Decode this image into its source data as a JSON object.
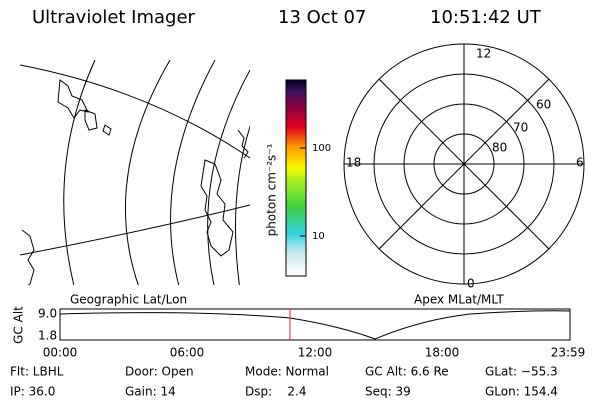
{
  "header": {
    "instrument": "Ultraviolet Imager",
    "date": "13 Oct 07",
    "time": "10:51:42 UT"
  },
  "colorbar": {
    "label": "photon cm⁻²s⁻¹",
    "ticks": [
      "100",
      "10"
    ]
  },
  "polar": {
    "mlt_labels": [
      "12",
      "18",
      "6",
      "0"
    ],
    "mlat_labels": [
      "60",
      "70",
      "80"
    ]
  },
  "panels": {
    "left": "Geographic Lat/Lon",
    "right": "Apex MLat/MLT"
  },
  "timeline": {
    "ylabel": "GC Alt",
    "yticks": [
      "9.0",
      "1.8"
    ],
    "xticks": [
      "00:00",
      "06:00",
      "12:00",
      "18:00",
      "23:59"
    ]
  },
  "info": {
    "rows": [
      [
        "Flt: LBHL",
        "Door: Open",
        "Mode: Normal",
        "GC Alt: 6.6 Re",
        "GLat: −55.3"
      ],
      [
        "IP: 36.0",
        "Gain: 14",
        "Dsp:    2.4",
        "Seq: 39",
        "GLon: 154.4"
      ]
    ]
  }
}
